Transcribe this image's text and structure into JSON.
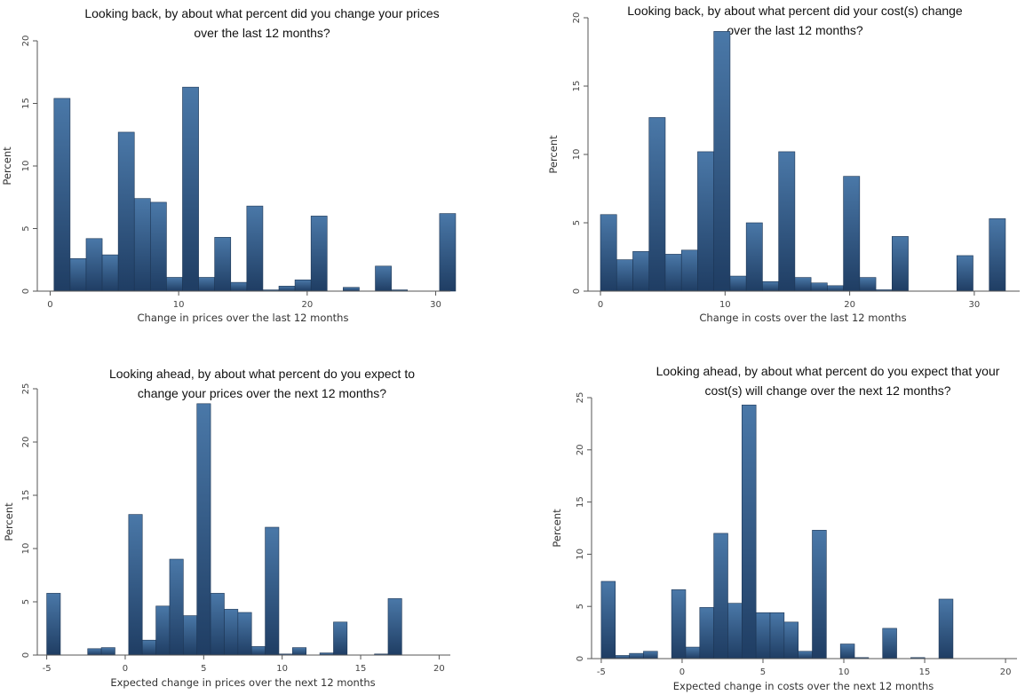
{
  "colors": {
    "bar_top": "#4a78a8",
    "bar_bottom": "#1f3d63",
    "bar_stroke": "#1c3554"
  },
  "chart_data": [
    {
      "type": "bar",
      "title_lines": [
        "Looking back, by about what percent did you change your prices",
        "over the last 12 months?"
      ],
      "xlabel": "Change in prices over the last 12 months",
      "ylabel": "Percent",
      "xlim": [
        -1,
        31
      ],
      "ylim": [
        0,
        20
      ],
      "xticks": [
        0,
        10,
        20,
        30
      ],
      "yticks": [
        0,
        5,
        10,
        15,
        20
      ],
      "bin_width": 1.25,
      "bins": [
        {
          "x0": 0.3,
          "value": 15.4
        },
        {
          "x0": 1.55,
          "value": 2.6
        },
        {
          "x0": 2.8,
          "value": 4.2
        },
        {
          "x0": 4.05,
          "value": 2.9
        },
        {
          "x0": 5.3,
          "value": 12.7
        },
        {
          "x0": 6.55,
          "value": 7.4
        },
        {
          "x0": 7.8,
          "value": 7.1
        },
        {
          "x0": 9.05,
          "value": 1.1
        },
        {
          "x0": 10.3,
          "value": 16.3
        },
        {
          "x0": 11.55,
          "value": 1.1
        },
        {
          "x0": 12.8,
          "value": 4.3
        },
        {
          "x0": 14.05,
          "value": 0.7
        },
        {
          "x0": 15.3,
          "value": 6.8
        },
        {
          "x0": 16.55,
          "value": 0.1
        },
        {
          "x0": 17.8,
          "value": 0.4
        },
        {
          "x0": 19.05,
          "value": 0.9
        },
        {
          "x0": 20.3,
          "value": 6.0
        },
        {
          "x0": 21.55,
          "value": 0.0
        },
        {
          "x0": 22.8,
          "value": 0.3
        },
        {
          "x0": 24.05,
          "value": 0.0
        },
        {
          "x0": 25.3,
          "value": 2.0
        },
        {
          "x0": 26.55,
          "value": 0.1
        },
        {
          "x0": 27.8,
          "value": 0.0
        },
        {
          "x0": 29.05,
          "value": 0.0
        },
        {
          "x0": 30.3,
          "value": 6.2
        }
      ]
    },
    {
      "type": "bar",
      "title_lines": [
        "Looking back, by about what percent did your cost(s) change",
        "over the last 12 months?"
      ],
      "xlabel": "Change in costs over the last 12 months",
      "ylabel": "Percent",
      "xlim": [
        -1,
        33.5
      ],
      "ylim": [
        0,
        20
      ],
      "xticks": [
        0,
        10,
        20,
        30
      ],
      "yticks": [
        0,
        5,
        10,
        15,
        20
      ],
      "bin_width": 1.3,
      "bins": [
        {
          "x0": 0.0,
          "value": 5.6
        },
        {
          "x0": 1.3,
          "value": 2.3
        },
        {
          "x0": 2.6,
          "value": 2.9
        },
        {
          "x0": 3.9,
          "value": 12.7
        },
        {
          "x0": 5.2,
          "value": 2.7
        },
        {
          "x0": 6.5,
          "value": 3.0
        },
        {
          "x0": 7.8,
          "value": 10.2
        },
        {
          "x0": 9.1,
          "value": 19.0
        },
        {
          "x0": 10.4,
          "value": 1.1
        },
        {
          "x0": 11.7,
          "value": 5.0
        },
        {
          "x0": 13.0,
          "value": 0.7
        },
        {
          "x0": 14.3,
          "value": 10.2
        },
        {
          "x0": 15.6,
          "value": 1.0
        },
        {
          "x0": 16.9,
          "value": 0.6
        },
        {
          "x0": 18.2,
          "value": 0.4
        },
        {
          "x0": 19.5,
          "value": 8.4
        },
        {
          "x0": 20.8,
          "value": 1.0
        },
        {
          "x0": 22.1,
          "value": 0.1
        },
        {
          "x0": 23.4,
          "value": 4.0
        },
        {
          "x0": 24.7,
          "value": 0.0
        },
        {
          "x0": 26.0,
          "value": 0.0
        },
        {
          "x0": 27.3,
          "value": 0.0
        },
        {
          "x0": 28.6,
          "value": 2.6
        },
        {
          "x0": 29.9,
          "value": 0.0
        },
        {
          "x0": 31.2,
          "value": 5.3
        }
      ]
    },
    {
      "type": "bar",
      "title_lines": [
        "Looking ahead, by about what percent do you expect to",
        "change your prices over the next 12 months?"
      ],
      "xlabel": "Expected change in prices over the next 12 months",
      "ylabel": "Percent",
      "xlim": [
        -5.6,
        20.6
      ],
      "ylim": [
        0,
        25
      ],
      "xticks": [
        -5,
        0,
        5,
        10,
        15,
        20
      ],
      "yticks": [
        0,
        5,
        10,
        15,
        20,
        25
      ],
      "bin_width": 0.87,
      "bins": [
        {
          "x0": -5.0,
          "value": 5.8
        },
        {
          "x0": -4.13,
          "value": 0.0
        },
        {
          "x0": -3.26,
          "value": 0.0
        },
        {
          "x0": -2.39,
          "value": 0.6
        },
        {
          "x0": -1.52,
          "value": 0.7
        },
        {
          "x0": -0.65,
          "value": 0.0
        },
        {
          "x0": 0.22,
          "value": 13.2
        },
        {
          "x0": 1.09,
          "value": 1.4
        },
        {
          "x0": 1.96,
          "value": 4.6
        },
        {
          "x0": 2.83,
          "value": 9.0
        },
        {
          "x0": 3.7,
          "value": 3.7
        },
        {
          "x0": 4.57,
          "value": 23.6
        },
        {
          "x0": 5.44,
          "value": 5.8
        },
        {
          "x0": 6.31,
          "value": 4.3
        },
        {
          "x0": 7.18,
          "value": 4.0
        },
        {
          "x0": 8.05,
          "value": 0.8
        },
        {
          "x0": 8.92,
          "value": 12.0
        },
        {
          "x0": 9.79,
          "value": 0.1
        },
        {
          "x0": 10.66,
          "value": 0.7
        },
        {
          "x0": 11.53,
          "value": 0.0
        },
        {
          "x0": 12.4,
          "value": 0.2
        },
        {
          "x0": 13.27,
          "value": 3.1
        },
        {
          "x0": 14.14,
          "value": 0.0
        },
        {
          "x0": 15.01,
          "value": 0.0
        },
        {
          "x0": 15.88,
          "value": 0.1
        },
        {
          "x0": 16.75,
          "value": 5.3
        }
      ]
    },
    {
      "type": "bar",
      "title_lines": [
        "Looking ahead, by about what percent do you expect that your",
        "cost(s) will change over the next 12 months?"
      ],
      "xlabel": "Expected change in costs over the next 12 months",
      "ylabel": "Percent",
      "xlim": [
        -5.6,
        20.6
      ],
      "ylim": [
        0,
        25
      ],
      "xticks": [
        -5,
        0,
        5,
        10,
        15,
        20
      ],
      "yticks": [
        0,
        5,
        10,
        15,
        20,
        25
      ],
      "bin_width": 0.87,
      "bins": [
        {
          "x0": -5.0,
          "value": 7.4
        },
        {
          "x0": -4.13,
          "value": 0.3
        },
        {
          "x0": -3.26,
          "value": 0.5
        },
        {
          "x0": -2.39,
          "value": 0.7
        },
        {
          "x0": -1.52,
          "value": 0.0
        },
        {
          "x0": -0.65,
          "value": 6.6
        },
        {
          "x0": 0.22,
          "value": 1.1
        },
        {
          "x0": 1.09,
          "value": 4.9
        },
        {
          "x0": 1.96,
          "value": 12.0
        },
        {
          "x0": 2.83,
          "value": 5.3
        },
        {
          "x0": 3.7,
          "value": 24.3
        },
        {
          "x0": 4.57,
          "value": 4.4
        },
        {
          "x0": 5.44,
          "value": 4.4
        },
        {
          "x0": 6.31,
          "value": 3.5
        },
        {
          "x0": 7.18,
          "value": 0.7
        },
        {
          "x0": 8.05,
          "value": 12.3
        },
        {
          "x0": 8.92,
          "value": 0.0
        },
        {
          "x0": 9.79,
          "value": 1.4
        },
        {
          "x0": 10.66,
          "value": 0.1
        },
        {
          "x0": 11.53,
          "value": 0.0
        },
        {
          "x0": 12.4,
          "value": 2.9
        },
        {
          "x0": 13.27,
          "value": 0.0
        },
        {
          "x0": 14.14,
          "value": 0.1
        },
        {
          "x0": 15.01,
          "value": 0.0
        },
        {
          "x0": 15.88,
          "value": 5.7
        }
      ]
    }
  ]
}
